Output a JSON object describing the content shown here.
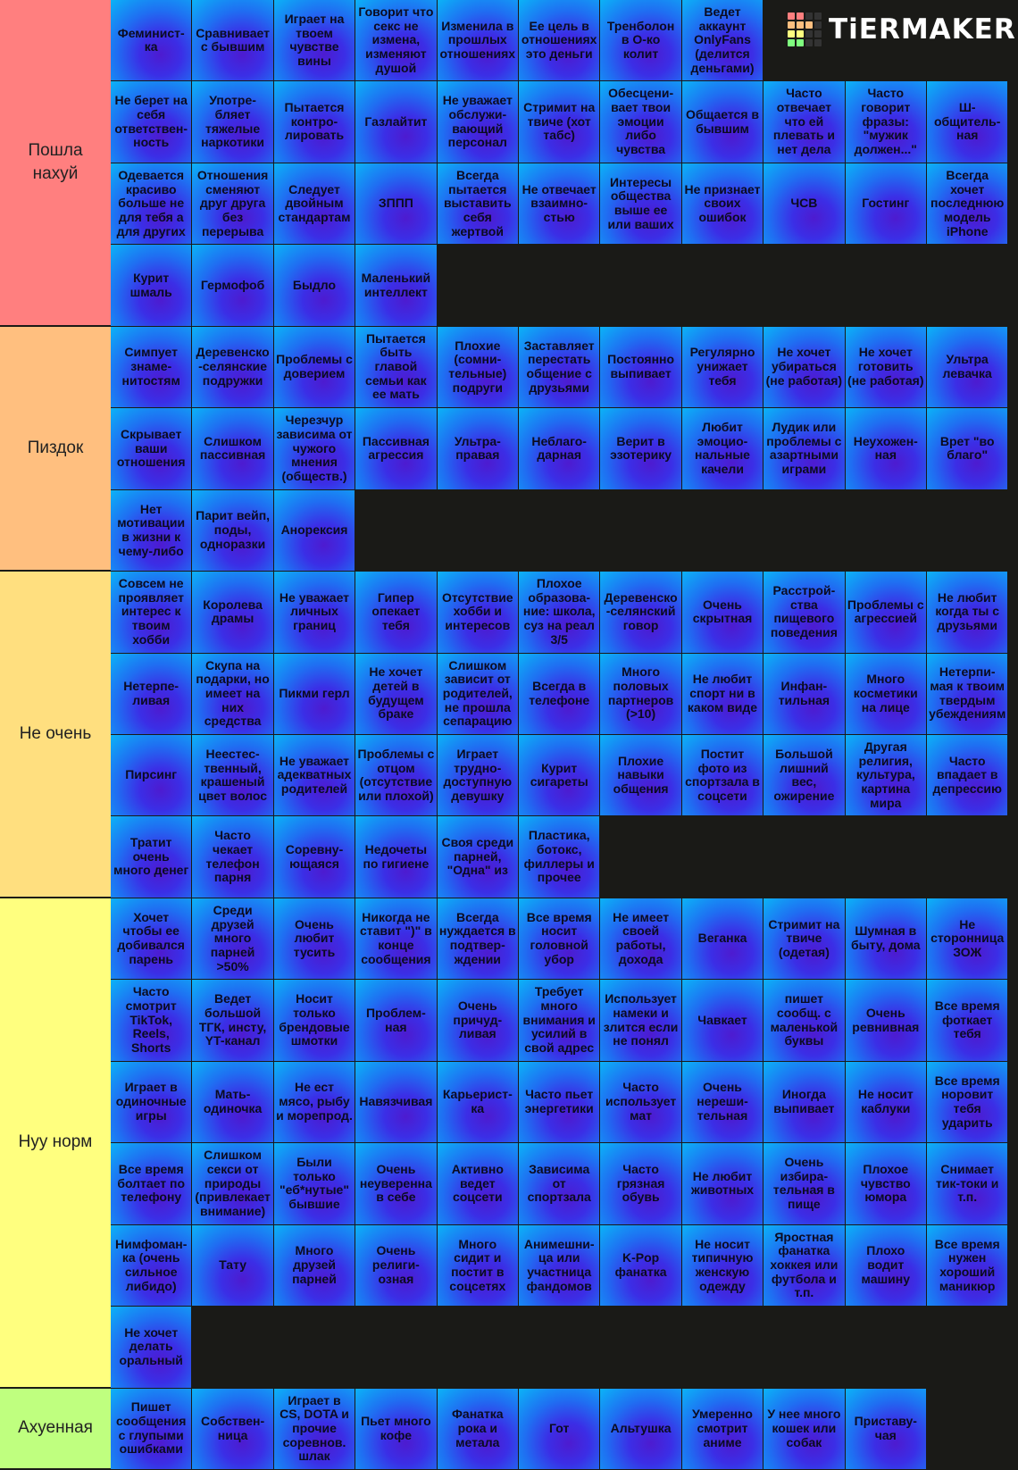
{
  "logo": "TiERMAKER",
  "tiers": [
    {
      "label": "Пошла нахуй",
      "color": "#ff7f7f",
      "rows": [
        [
          "Феминист-ка",
          "Сравнивает с бывшим",
          "Играет на твоем чувстве вины",
          "Говорит что секс не измена, изменяют душой",
          "Изменила в прошлых отношениях",
          "Ее цель в отношениях это деньги",
          "Тренболон в О-ко колит",
          "Ведет аккаунт OnlyFans (делится деньгами)"
        ],
        [
          "Не берет на себя ответствен-ность",
          "Употре-бляет тяжелые наркотики",
          "Пытается контро-лировать",
          "Газлайтит",
          "Не уважает обслужи-вающий персонал",
          "Стримит на твиче (хот табс)",
          "Обесцени-вает твои эмоции либо чувства",
          "Общается в бывшим",
          "Часто отвечает что ей плевать и нет дела",
          "Часто говорит фразы: \"мужик должен...\"",
          "Ш-общитель-ная"
        ],
        [
          "Одевается красиво больше не для тебя а для других",
          "Отношения сменяют друг друга без перерыва",
          "Следует двойным стандартам",
          "ЗППП",
          "Всегда пытается выставить себя жертвой",
          "Не отвечает взаимно-стью",
          "Интересы общества выше ее или ваших",
          "Не признает своих ошибок",
          "ЧСВ",
          "Гостинг",
          "Всегда хочет последнюю модель iPhone"
        ],
        [
          "Курит шмаль",
          "Гермофоб",
          "Быдло",
          "Маленький интеллект"
        ]
      ]
    },
    {
      "label": "Пиздок",
      "color": "#ffbf7f",
      "rows": [
        [
          "Симпует знаме-нитостям",
          "Деревенско-селянские подружки",
          "Проблемы с доверием",
          "Пытается быть главой семьи как ее мать",
          "Плохие (сомни-тельные) подруги",
          "Заставляет перестать общение с друзьями",
          "Постоянно выпивает",
          "Регулярно унижает тебя",
          "Не хочет убираться (не работая)",
          "Не хочет готовить (не работая)",
          "Ультра левачка"
        ],
        [
          "Скрывает ваши отношения",
          "Слишком пассивная",
          "Черезчур зависима от чужого мнения (обществ.)",
          "Пассивная агрессия",
          "Ультра-правая",
          "Неблаго-дарная",
          "Верит в эзотерику",
          "Любит эмоцио-нальные качели",
          "Лудик или проблемы с азартными играми",
          "Неухожен-ная",
          "Врет \"во благо\""
        ],
        [
          "Нет мотивации в жизни к чему-либо",
          "Парит вейп, поды, одноразки",
          "Анорексия"
        ]
      ]
    },
    {
      "label": "Не очень",
      "color": "#ffdf7f",
      "rows": [
        [
          "Совсем не проявляет интерес к твоим хобби",
          "Королева драмы",
          "Не уважает личных границ",
          "Гипер опекает тебя",
          "Отсутствие хобби и интересов",
          "Плохое образова-ние: школа, суз на реал 3/5",
          "Деревенско-селянский говор",
          "Очень скрытная",
          "Расстрой-ства пищевого поведения",
          "Проблемы с агрессией",
          "Не любит когда ты с друзьями"
        ],
        [
          "Нетерпе-ливая",
          "Скупа на подарки, но имеет на них средства",
          "Пикми герл",
          "Не хочет детей в будущем браке",
          "Слишком зависит от родителей, не прошла сепарацию",
          "Всегда в телефоне",
          "Много половых партнеров (>10)",
          "Не любит спорт ни в каком виде",
          "Инфан-тильная",
          "Много косметики на лице",
          "Нетерпи-мая к твоим твердым убеждениям"
        ],
        [
          "Пирсинг",
          "Неестес-твенный, крашеный цвет волос",
          "Не уважает адекватных родителей",
          "Проблемы с отцом (отсутствие или плохой)",
          "Играет трудно-доступную девушку",
          "Курит сигареты",
          "Плохие навыки общения",
          "Постит фото из спортзала в соцсети",
          "Большой лишний вес, ожирение",
          "Другая религия, культура, картина мира",
          "Часто впадает в депрессию"
        ],
        [
          "Тратит очень много денег",
          "Часто чекает телефон парня",
          "Соревну-ющаяся",
          "Недочеты по гигиене",
          "Своя среди парней, \"Одна\" из",
          "Пластика, ботокс, филлеры и прочее"
        ]
      ]
    },
    {
      "label": "Нуу норм",
      "color": "#ffff7f",
      "rows": [
        [
          "Хочет чтобы ее добивался парень",
          "Среди друзей много парней >50%",
          "Очень любит тусить",
          "Никогда не ставит \")\" в конце сообщения",
          "Всегда нуждается в подтвер-ждении",
          "Все время носит головной убор",
          "Не имеет своей работы, дохода",
          "Веганка",
          "Стримит на твиче (одетая)",
          "Шумная в быту, дома",
          "Не сторонница ЗОЖ"
        ],
        [
          "Часто смотрит TikTok, Reels, Shorts",
          "Ведет большой ТГК, инсту, YT-канал",
          "Носит только брендовые шмотки",
          "Проблем-ная",
          "Очень причуд-ливая",
          "Требует много внимания и усилий в свой адрес",
          "Использует намеки и злится если не понял",
          "Чавкает",
          "пишет сообщ. с маленькой буквы",
          "Очень ревнивная",
          "Все время фоткает тебя"
        ],
        [
          "Играет в одиночные игры",
          "Мать-одиночка",
          "Не ест мясо, рыбу и морепрод.",
          "Навязчивая",
          "Карьерист-ка",
          "Часто пьет энергетики",
          "Часто использует мат",
          "Очень нереши-тельная",
          "Иногда выпивает",
          "Не носит каблуки",
          "Все время норовит тебя ударить"
        ],
        [
          "Все время болтает по телефону",
          "Слишком секси от природы (привлекает внимание)",
          "Были только \"еб*нутые\" бывшие",
          "Очень неуверенна в себе",
          "Активно ведет соцсети",
          "Зависима от спортзала",
          "Часто грязная обувь",
          "Не любит животных",
          "Очень избира-тельная в пище",
          "Плохое чувство юмора",
          "Снимает тик-токи и т.п."
        ],
        [
          "Нимфоман-ка (очень сильное либидо)",
          "Тату",
          "Много друзей парней",
          "Очень религи-озная",
          "Много сидит и постит в соцсетях",
          "Анимешни-ца или участница фандомов",
          "K-Pop фанатка",
          "Не носит типичную женскую одежду",
          "Яростная фанатка хоккея или футбола и т.п.",
          "Плохо водит машину",
          "Все время нужен хороший маникюр"
        ],
        [
          "Не хочет делать оральный"
        ]
      ]
    },
    {
      "label": "Ахуенная",
      "color": "#bfff7f",
      "rows": [
        [
          "Пишет сообщения с глупыми ошибками",
          "Собствен-ница",
          "Играет в CS, DOTA и прочие соревнов. шлак",
          "Пьет много кофе",
          "Фанатка рока и метала",
          "Гот",
          "Альтушка",
          "Умеренно смотрит аниме",
          "У нее много кошек или собак",
          "Приставу-чая"
        ]
      ]
    }
  ]
}
